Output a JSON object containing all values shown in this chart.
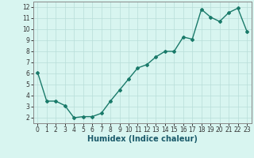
{
  "x": [
    0,
    1,
    2,
    3,
    4,
    5,
    6,
    7,
    8,
    9,
    10,
    11,
    12,
    13,
    14,
    15,
    16,
    17,
    18,
    19,
    20,
    21,
    22,
    23
  ],
  "y": [
    6.1,
    3.5,
    3.5,
    3.1,
    2.0,
    2.1,
    2.1,
    2.4,
    3.5,
    4.5,
    5.5,
    6.5,
    6.8,
    7.5,
    8.0,
    8.0,
    9.3,
    9.1,
    11.8,
    11.1,
    10.7,
    11.5,
    11.9,
    9.8
  ],
  "line_color": "#1a7a6a",
  "marker": "D",
  "marker_size": 2,
  "bg_color": "#d8f5f0",
  "grid_color": "#b8ddd8",
  "xlabel": "Humidex (Indice chaleur)",
  "xlim": [
    -0.5,
    23.5
  ],
  "ylim": [
    1.5,
    12.5
  ],
  "yticks": [
    2,
    3,
    4,
    5,
    6,
    7,
    8,
    9,
    10,
    11,
    12
  ],
  "xticks": [
    0,
    1,
    2,
    3,
    4,
    5,
    6,
    7,
    8,
    9,
    10,
    11,
    12,
    13,
    14,
    15,
    16,
    17,
    18,
    19,
    20,
    21,
    22,
    23
  ],
  "tick_fontsize": 5.5,
  "xlabel_fontsize": 7,
  "linewidth": 1.0,
  "spine_color": "#888888"
}
